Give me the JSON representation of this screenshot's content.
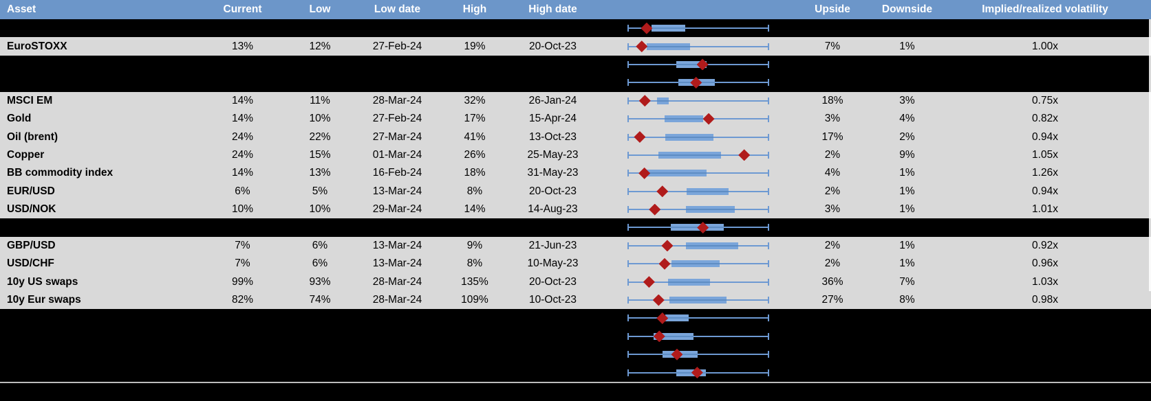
{
  "header": {
    "asset": "Asset",
    "current": "Current",
    "low": "Low",
    "low_date": "Low date",
    "high": "High",
    "high_date": "High date",
    "upside": "Upside",
    "downside": "Downside",
    "implied": "Implied/realized volatility"
  },
  "colors": {
    "header_bg": "#6c96c9",
    "row_bg": "#d9d9d9",
    "hidden_bg": "#000000",
    "box_fill": "#7aa5da",
    "box_line": "#5e8dc4",
    "whisker": "#6d99d2",
    "marker": "#b01b1b",
    "separator": "#bdbdbd",
    "header_text": "#ffffff",
    "row_text": "#000000"
  },
  "chart_data": {
    "type": "table",
    "note": "Implied volatility table; middle column shows normalized 1y range boxplots (0=low,100=high) with red diamond = current level",
    "columns": [
      "Asset",
      "Current",
      "Low",
      "Low date",
      "High",
      "High date",
      "Upside",
      "Downside",
      "Implied/realized volatility"
    ]
  },
  "rows": [
    {
      "type": "hidden",
      "box": {
        "start": 16.5,
        "end": 40.7,
        "marker": 13.2
      }
    },
    {
      "type": "data",
      "asset": "EuroSTOXX",
      "current": "13%",
      "low": "12%",
      "low_date": "27-Feb-24",
      "high": "19%",
      "high_date": "20-Oct-23",
      "upside": "7%",
      "downside": "1%",
      "implied": "1.00x",
      "box": {
        "start": 13.2,
        "end": 44.3,
        "marker": 9.7
      }
    },
    {
      "type": "hidden",
      "box": {
        "start": 34.5,
        "end": 55.8,
        "marker": 53.0
      }
    },
    {
      "type": "hidden",
      "box": {
        "start": 35.6,
        "end": 61.9,
        "marker": 48.4
      }
    },
    {
      "type": "data",
      "asset": "MSCI EM",
      "current": "14%",
      "low": "11%",
      "low_date": "28-Mar-24",
      "high": "32%",
      "high_date": "26-Jan-24",
      "upside": "18%",
      "downside": "3%",
      "implied": "0.75x",
      "box": {
        "start": 20.6,
        "end": 29.1,
        "marker": 11.9
      }
    },
    {
      "type": "data",
      "asset": "Gold",
      "current": "14%",
      "low": "10%",
      "low_date": "27-Feb-24",
      "high": "17%",
      "high_date": "15-Apr-24",
      "upside": "3%",
      "downside": "4%",
      "implied": "0.82x",
      "box": {
        "start": 26.0,
        "end": 53.6,
        "marker": 57.4
      }
    },
    {
      "type": "data",
      "asset": "Oil (brent)",
      "current": "24%",
      "low": "22%",
      "low_date": "27-Mar-24",
      "high": "41%",
      "high_date": "13-Oct-23",
      "upside": "17%",
      "downside": "2%",
      "implied": "0.94x",
      "box": {
        "start": 26.3,
        "end": 60.6,
        "marker": 8.3
      }
    },
    {
      "type": "data",
      "asset": "Copper",
      "current": "24%",
      "low": "15%",
      "low_date": "01-Mar-24",
      "high": "26%",
      "high_date": "25-May-23",
      "upside": "2%",
      "downside": "9%",
      "implied": "1.05x",
      "box": {
        "start": 21.4,
        "end": 66.3,
        "marker": 82.7
      }
    },
    {
      "type": "data",
      "asset": "BB commodity index",
      "current": "14%",
      "low": "13%",
      "low_date": "16-Feb-24",
      "high": "18%",
      "high_date": "31-May-23",
      "upside": "4%",
      "downside": "1%",
      "implied": "1.26x",
      "box": {
        "start": 13.2,
        "end": 55.7,
        "marker": 11.6
      }
    },
    {
      "type": "data",
      "asset": "EUR/USD",
      "current": "6%",
      "low": "5%",
      "low_date": "13-Mar-24",
      "high": "8%",
      "high_date": "20-Oct-23",
      "upside": "2%",
      "downside": "1%",
      "implied": "0.94x",
      "box": {
        "start": 41.8,
        "end": 71.6,
        "marker": 24.4
      }
    },
    {
      "type": "data",
      "asset": "USD/NOK",
      "current": "10%",
      "low": "10%",
      "low_date": "29-Mar-24",
      "high": "14%",
      "high_date": "14-Aug-23",
      "upside": "3%",
      "downside": "1%",
      "implied": "1.01x",
      "box": {
        "start": 41.0,
        "end": 76.1,
        "marker": 19.0
      }
    },
    {
      "type": "hidden",
      "box": {
        "start": 30.4,
        "end": 68.0,
        "marker": 53.3
      }
    },
    {
      "type": "data",
      "asset": "GBP/USD",
      "current": "7%",
      "low": "6%",
      "low_date": "13-Mar-24",
      "high": "9%",
      "high_date": "21-Jun-23",
      "upside": "2%",
      "downside": "1%",
      "implied": "0.92x",
      "box": {
        "start": 41.0,
        "end": 78.6,
        "marker": 27.9
      }
    },
    {
      "type": "data",
      "asset": "USD/CHF",
      "current": "7%",
      "low": "6%",
      "low_date": "13-Mar-24",
      "high": "8%",
      "high_date": "10-May-23",
      "upside": "2%",
      "downside": "1%",
      "implied": "0.96x",
      "box": {
        "start": 30.9,
        "end": 65.2,
        "marker": 26.0
      }
    },
    {
      "type": "data",
      "asset": "10y US swaps",
      "current": "99%",
      "low": "93%",
      "low_date": "28-Mar-24",
      "high": "135%",
      "high_date": "20-Oct-23",
      "upside": "36%",
      "downside": "7%",
      "implied": "1.03x",
      "box": {
        "start": 28.4,
        "end": 58.5,
        "marker": 14.9
      }
    },
    {
      "type": "data",
      "asset": "10y Eur swaps",
      "current": "82%",
      "low": "74%",
      "low_date": "28-Mar-24",
      "high": "109%",
      "high_date": "10-Oct-23",
      "upside": "27%",
      "downside": "8%",
      "implied": "0.98x",
      "box": {
        "start": 29.3,
        "end": 70.0,
        "marker": 21.7
      }
    },
    {
      "type": "hidden",
      "box": {
        "start": 26.3,
        "end": 43.1,
        "marker": 24.4
      }
    },
    {
      "type": "hidden",
      "box": {
        "start": 18.1,
        "end": 46.4,
        "marker": 22.2
      }
    },
    {
      "type": "hidden",
      "box": {
        "start": 24.4,
        "end": 49.5,
        "marker": 34.8
      }
    },
    {
      "type": "hidden",
      "box": {
        "start": 34.5,
        "end": 55.2,
        "marker": 49.2
      }
    }
  ]
}
